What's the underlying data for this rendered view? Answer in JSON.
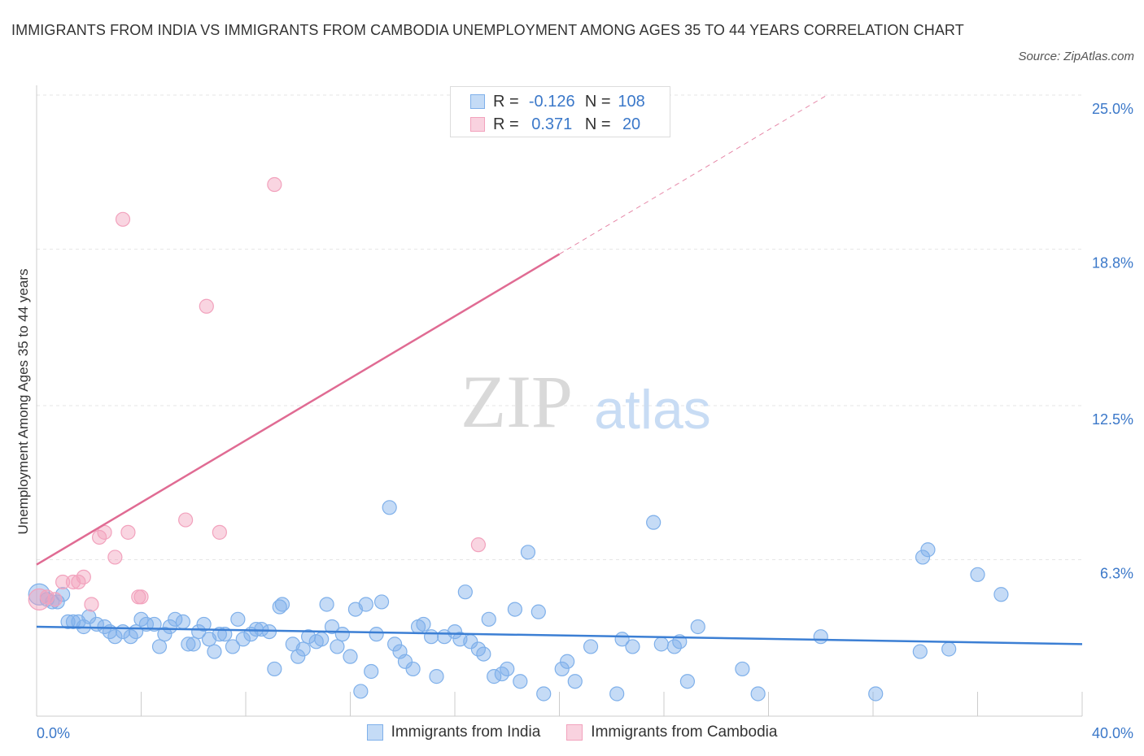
{
  "title": "IMMIGRANTS FROM INDIA VS IMMIGRANTS FROM CAMBODIA UNEMPLOYMENT AMONG AGES 35 TO 44 YEARS CORRELATION CHART",
  "source": "Source: ZipAtlas.com",
  "watermark": {
    "zip": "ZIP",
    "atlas": "atlas"
  },
  "legend": {
    "rows": [
      {
        "r_label": "R =",
        "r_value": "-0.126",
        "n_label": "N =",
        "n_value": "108",
        "color": "#7fb0ea"
      },
      {
        "r_label": "R =",
        "r_value": "0.371",
        "n_label": "N =",
        "n_value": "20",
        "color": "#f2a2bd"
      }
    ]
  },
  "chart_data": {
    "type": "scatter",
    "title": "IMMIGRANTS FROM INDIA VS IMMIGRANTS FROM CAMBODIA UNEMPLOYMENT AMONG AGES 35 TO 44 YEARS CORRELATION CHART",
    "xlabel": "",
    "ylabel": "Unemployment Among Ages 35 to 44 years",
    "xlim": [
      0,
      40
    ],
    "ylim": [
      0,
      25
    ],
    "x_tick_labels": [
      "0.0%",
      "40.0%"
    ],
    "y_tick_values": [
      6.3,
      12.5,
      18.8,
      25.0
    ],
    "y_tick_labels": [
      "6.3%",
      "12.5%",
      "18.8%",
      "25.0%"
    ],
    "grid": true,
    "legend_position": "top-center",
    "series": [
      {
        "name": "Immigrants from India",
        "color": "#7fb0ea",
        "line_color": "#3c7fd4",
        "trend": {
          "x": [
            0,
            40
          ],
          "y": [
            3.6,
            2.9
          ],
          "dashed_after": null
        },
        "points": [
          [
            0.1,
            4.9
          ],
          [
            0.4,
            4.7
          ],
          [
            0.6,
            4.6
          ],
          [
            0.8,
            4.6
          ],
          [
            1.0,
            4.9
          ],
          [
            1.2,
            3.8
          ],
          [
            1.4,
            3.8
          ],
          [
            1.6,
            3.8
          ],
          [
            1.8,
            3.6
          ],
          [
            2.0,
            4.0
          ],
          [
            2.3,
            3.7
          ],
          [
            2.6,
            3.6
          ],
          [
            2.8,
            3.4
          ],
          [
            3.0,
            3.2
          ],
          [
            3.3,
            3.4
          ],
          [
            3.6,
            3.2
          ],
          [
            3.8,
            3.4
          ],
          [
            4.0,
            3.9
          ],
          [
            4.2,
            3.7
          ],
          [
            4.5,
            3.7
          ],
          [
            4.7,
            2.8
          ],
          [
            4.9,
            3.3
          ],
          [
            5.1,
            3.6
          ],
          [
            5.3,
            3.9
          ],
          [
            5.6,
            3.8
          ],
          [
            5.8,
            2.9
          ],
          [
            6.0,
            2.9
          ],
          [
            6.2,
            3.4
          ],
          [
            6.4,
            3.7
          ],
          [
            6.6,
            3.1
          ],
          [
            6.8,
            2.6
          ],
          [
            7.0,
            3.3
          ],
          [
            7.2,
            3.3
          ],
          [
            7.5,
            2.8
          ],
          [
            7.7,
            3.9
          ],
          [
            7.9,
            3.1
          ],
          [
            8.2,
            3.3
          ],
          [
            8.4,
            3.5
          ],
          [
            8.6,
            3.5
          ],
          [
            8.9,
            3.4
          ],
          [
            9.1,
            1.9
          ],
          [
            9.3,
            4.4
          ],
          [
            9.4,
            4.5
          ],
          [
            9.8,
            2.9
          ],
          [
            10.0,
            2.4
          ],
          [
            10.2,
            2.7
          ],
          [
            10.4,
            3.2
          ],
          [
            10.7,
            3.0
          ],
          [
            10.9,
            3.1
          ],
          [
            11.1,
            4.5
          ],
          [
            11.3,
            3.6
          ],
          [
            11.5,
            2.8
          ],
          [
            11.7,
            3.3
          ],
          [
            12.0,
            2.4
          ],
          [
            12.2,
            4.3
          ],
          [
            12.4,
            1.0
          ],
          [
            12.6,
            4.5
          ],
          [
            12.8,
            1.8
          ],
          [
            13.0,
            3.3
          ],
          [
            13.2,
            4.6
          ],
          [
            13.5,
            8.4
          ],
          [
            13.7,
            2.9
          ],
          [
            13.9,
            2.6
          ],
          [
            14.1,
            2.2
          ],
          [
            14.4,
            1.9
          ],
          [
            14.6,
            3.6
          ],
          [
            14.8,
            3.7
          ],
          [
            15.1,
            3.2
          ],
          [
            15.3,
            1.6
          ],
          [
            15.6,
            3.2
          ],
          [
            16.0,
            3.4
          ],
          [
            16.2,
            3.1
          ],
          [
            16.4,
            5.0
          ],
          [
            16.6,
            3.0
          ],
          [
            16.9,
            2.7
          ],
          [
            17.1,
            2.5
          ],
          [
            17.3,
            3.9
          ],
          [
            17.5,
            1.6
          ],
          [
            17.8,
            1.7
          ],
          [
            18.0,
            1.9
          ],
          [
            18.3,
            4.3
          ],
          [
            18.5,
            1.4
          ],
          [
            18.8,
            6.6
          ],
          [
            19.2,
            4.2
          ],
          [
            19.4,
            0.9
          ],
          [
            20.1,
            1.9
          ],
          [
            20.3,
            2.2
          ],
          [
            20.6,
            1.4
          ],
          [
            21.2,
            2.8
          ],
          [
            22.2,
            0.9
          ],
          [
            22.4,
            3.1
          ],
          [
            22.8,
            2.8
          ],
          [
            23.6,
            7.8
          ],
          [
            23.9,
            2.9
          ],
          [
            24.4,
            2.8
          ],
          [
            24.6,
            3.0
          ],
          [
            24.9,
            1.4
          ],
          [
            25.3,
            3.6
          ],
          [
            27.0,
            1.9
          ],
          [
            27.6,
            0.9
          ],
          [
            30.0,
            3.2
          ],
          [
            32.1,
            0.9
          ],
          [
            33.8,
            2.6
          ],
          [
            33.9,
            6.4
          ],
          [
            34.1,
            6.7
          ],
          [
            34.9,
            2.7
          ],
          [
            36.0,
            5.7
          ],
          [
            36.9,
            4.9
          ]
        ]
      },
      {
        "name": "Immigrants from Cambodia",
        "color": "#f2a2bd",
        "line_color": "#e06b93",
        "trend": {
          "x": [
            0,
            40
          ],
          "y": [
            6.1,
            31.1
          ],
          "solid_until_x": 20.0
        },
        "points": [
          [
            0.1,
            4.7
          ],
          [
            0.4,
            4.8
          ],
          [
            0.7,
            4.7
          ],
          [
            1.0,
            5.4
          ],
          [
            1.4,
            5.4
          ],
          [
            1.6,
            5.4
          ],
          [
            1.8,
            5.6
          ],
          [
            2.1,
            4.5
          ],
          [
            2.4,
            7.2
          ],
          [
            2.6,
            7.4
          ],
          [
            3.0,
            6.4
          ],
          [
            3.3,
            20.0
          ],
          [
            3.5,
            7.4
          ],
          [
            3.9,
            4.8
          ],
          [
            4.0,
            4.8
          ],
          [
            5.7,
            7.9
          ],
          [
            6.5,
            16.5
          ],
          [
            7.0,
            7.4
          ],
          [
            9.1,
            21.4
          ],
          [
            16.9,
            6.9
          ]
        ]
      }
    ]
  }
}
